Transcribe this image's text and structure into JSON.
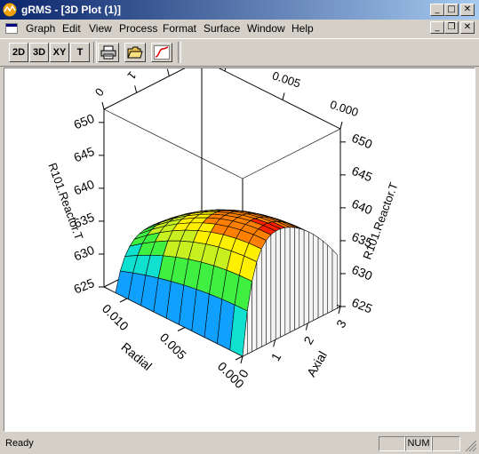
{
  "window": {
    "title": "gRMS - [3D Plot (1)]"
  },
  "menu": {
    "items": [
      "Graph",
      "Edit",
      "View",
      "Process",
      "Format",
      "Surface",
      "Window",
      "Help"
    ]
  },
  "toolbar": {
    "btn_2d": "2D",
    "btn_3d": "3D",
    "btn_xy": "XY",
    "btn_t": "T"
  },
  "status": {
    "text": "Ready",
    "num": "NUM"
  },
  "icons": [
    "app-icon",
    "print-icon",
    "open-folder-icon",
    "curve-icon",
    "minimize-icon",
    "restore-icon",
    "close-icon"
  ],
  "colors": {
    "titlebar_start": "#0a246a",
    "titlebar_end": "#a6caf0"
  },
  "chart_data": {
    "type": "surface3d",
    "x_axis": {
      "label": "Radial",
      "ticks": [
        "0.000",
        "0.005",
        "0.010"
      ],
      "range": [
        0,
        0.012
      ]
    },
    "y_axis": {
      "label": "Axial",
      "ticks": [
        "0",
        "1",
        "2",
        "3"
      ],
      "range": [
        0,
        3
      ]
    },
    "z_axis": {
      "label": "R101.Reactor.T",
      "ticks": [
        "625",
        "630",
        "635",
        "640",
        "645",
        "650"
      ],
      "range": [
        625,
        652
      ]
    },
    "surface": {
      "z_min": 625,
      "z_max": 643,
      "colormap": "jet",
      "description_axis": "temperature peaks near mid-axial, decreases with radius"
    }
  }
}
